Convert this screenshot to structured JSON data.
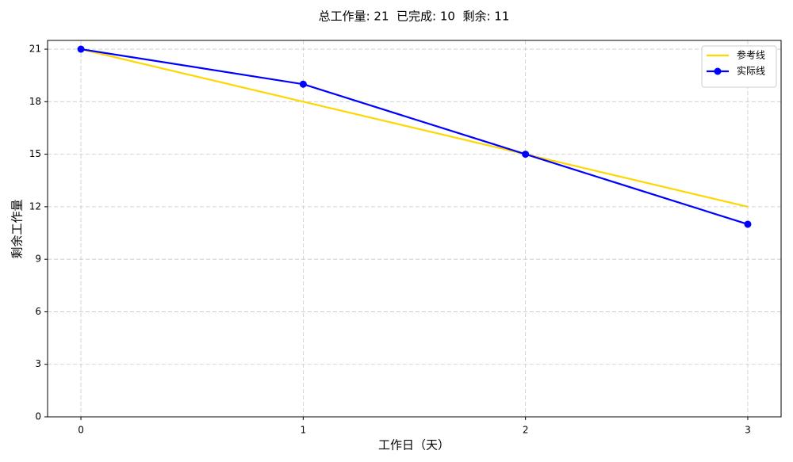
{
  "chart_data": {
    "type": "line",
    "title": "总工作量: 21  已完成: 10  剩余: 11",
    "x_label": "工作日（天）",
    "y_label": "剩余工作量",
    "x": [
      0,
      1,
      2,
      3
    ],
    "series": [
      {
        "name": "参考线",
        "color": "#ffd700",
        "values": [
          21,
          18,
          15,
          12
        ],
        "markers": false
      },
      {
        "name": "实际线",
        "color": "#0000ff",
        "values": [
          21,
          19,
          15,
          11
        ],
        "markers": true
      }
    ],
    "xlim": [
      -0.15,
      3.15
    ],
    "ylim": [
      0,
      21.5
    ],
    "xticks": [
      0,
      1,
      2,
      3
    ],
    "yticks": [
      0,
      3,
      6,
      9,
      12,
      15,
      18,
      21
    ],
    "grid": true,
    "legend": "upper-right"
  }
}
